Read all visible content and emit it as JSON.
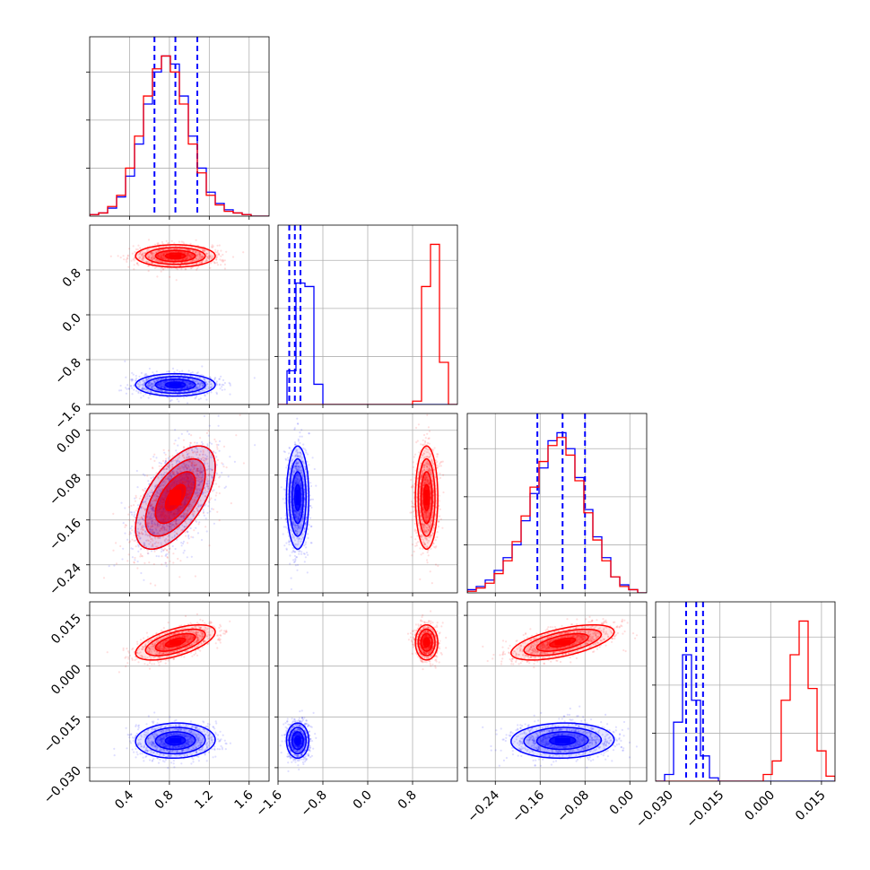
{
  "chart_data": {
    "type": "corner",
    "title": "",
    "grid": true,
    "colors": {
      "series_a": "#0000ff",
      "series_b": "#ff0000"
    },
    "parameters": [
      {
        "range": [
          0.0,
          1.8
        ],
        "ticks": [
          0.4,
          0.8,
          1.2,
          1.6
        ],
        "tick_labels": [
          "0.4",
          "0.8",
          "1.2",
          "1.6"
        ]
      },
      {
        "range": [
          -1.6,
          1.6
        ],
        "ticks": [
          -1.6,
          -0.8,
          0.0,
          0.8
        ],
        "tick_labels": [
          "−1.6",
          "−0.8",
          "0.0",
          "0.8"
        ]
      },
      {
        "range": [
          -0.29,
          0.03
        ],
        "ticks": [
          -0.24,
          -0.16,
          -0.08,
          0.0
        ],
        "tick_labels": [
          "−0.24",
          "−0.16",
          "−0.08",
          "0.00"
        ]
      },
      {
        "range": [
          -0.034,
          0.019
        ],
        "ticks": [
          -0.03,
          -0.015,
          0.0,
          0.015
        ],
        "tick_labels": [
          "−0.030",
          "−0.015",
          "0.000",
          "0.015"
        ]
      }
    ],
    "series": [
      {
        "color": "#0000ff",
        "means": [
          0.86,
          -1.25,
          -0.12,
          -0.022
        ],
        "stds": [
          0.2,
          0.1,
          0.046,
          0.0026
        ],
        "correlations": {
          "0-2": 0.6,
          "0-3": 0.05,
          "1-2": 0.0,
          "1-3": 0.0,
          "2-3": 0.05
        },
        "quantile_lines": [
          [
            0.65,
            0.86,
            1.08
          ],
          [
            -1.4,
            -1.3,
            -1.2
          ],
          [
            -0.165,
            -0.12,
            -0.08
          ],
          [
            -0.025,
            -0.022,
            -0.02
          ]
        ],
        "histograms": [
          {
            "edges": [
              0.0,
              0.09,
              0.18,
              0.27,
              0.36,
              0.45,
              0.54,
              0.63,
              0.72,
              0.81,
              0.9,
              0.99,
              1.08,
              1.17,
              1.26,
              1.35,
              1.44,
              1.53,
              1.62,
              1.71,
              1.8
            ],
            "counts": [
              0.01,
              0.02,
              0.05,
              0.12,
              0.25,
              0.45,
              0.7,
              0.9,
              1.0,
              0.95,
              0.75,
              0.5,
              0.3,
              0.15,
              0.08,
              0.04,
              0.02,
              0.01,
              0.0,
              0.0
            ]
          },
          {
            "edges": [
              -1.6,
              -1.44,
              -1.28,
              -1.12,
              -0.96,
              -0.8,
              -0.64,
              -0.48,
              -0.32,
              -0.16,
              0.0,
              0.16,
              0.32,
              0.48,
              0.64,
              0.8,
              0.96,
              1.12,
              1.28,
              1.44,
              1.6
            ],
            "counts": [
              0.0,
              0.2,
              0.72,
              0.7,
              0.12,
              0.0,
              0.0,
              0.0,
              0.0,
              0.0,
              0.0,
              0.0,
              0.0,
              0.0,
              0.0,
              0.0,
              0.0,
              0.0,
              0.0,
              0.0
            ]
          },
          {
            "edges": [
              -0.29,
              -0.274,
              -0.258,
              -0.242,
              -0.226,
              -0.21,
              -0.194,
              -0.178,
              -0.162,
              -0.146,
              -0.13,
              -0.114,
              -0.098,
              -0.082,
              -0.066,
              -0.05,
              -0.034,
              -0.018,
              -0.002,
              0.014,
              0.03
            ],
            "counts": [
              0.02,
              0.04,
              0.08,
              0.14,
              0.22,
              0.3,
              0.45,
              0.62,
              0.78,
              0.95,
              1.0,
              0.9,
              0.72,
              0.52,
              0.35,
              0.22,
              0.1,
              0.05,
              0.02,
              0.0
            ]
          },
          {
            "edges": [
              -0.034,
              -0.03135,
              -0.0287,
              -0.02605,
              -0.0234,
              -0.02075,
              -0.0181,
              -0.01545,
              -0.0128,
              -0.01015,
              -0.0075,
              -0.00485,
              -0.0022,
              0.00045,
              0.0031,
              0.00575,
              0.0084,
              0.01105,
              0.0137,
              0.01635,
              0.019
            ],
            "counts": [
              0.0,
              0.04,
              0.35,
              0.75,
              0.48,
              0.15,
              0.02,
              0.0,
              0.0,
              0.0,
              0.0,
              0.0,
              0.0,
              0.0,
              0.0,
              0.0,
              0.0,
              0.0,
              0.0,
              0.0
            ]
          }
        ]
      },
      {
        "color": "#ff0000",
        "means": [
          0.86,
          1.05,
          -0.12,
          0.007
        ],
        "stds": [
          0.2,
          0.1,
          0.046,
          0.0026
        ],
        "correlations": {
          "0-2": 0.6,
          "0-3": 0.6,
          "1-2": 0.0,
          "1-3": 0.0,
          "2-3": 0.6
        },
        "histograms": [
          {
            "edges": [
              0.0,
              0.09,
              0.18,
              0.27,
              0.36,
              0.45,
              0.54,
              0.63,
              0.72,
              0.81,
              0.9,
              0.99,
              1.08,
              1.17,
              1.26,
              1.35,
              1.44,
              1.53,
              1.62,
              1.71,
              1.8
            ],
            "counts": [
              0.01,
              0.02,
              0.06,
              0.13,
              0.3,
              0.5,
              0.75,
              0.92,
              1.0,
              0.9,
              0.7,
              0.45,
              0.27,
              0.13,
              0.07,
              0.03,
              0.02,
              0.01,
              0.0,
              0.0
            ]
          },
          {
            "edges": [
              -1.6,
              -1.44,
              -1.28,
              -1.12,
              -0.96,
              -0.8,
              -0.64,
              -0.48,
              -0.32,
              -0.16,
              0.0,
              0.16,
              0.32,
              0.48,
              0.64,
              0.8,
              0.96,
              1.12,
              1.28,
              1.44,
              1.6
            ],
            "counts": [
              0.0,
              0.0,
              0.0,
              0.0,
              0.0,
              0.0,
              0.0,
              0.0,
              0.0,
              0.0,
              0.0,
              0.0,
              0.0,
              0.0,
              0.0,
              0.02,
              0.7,
              0.95,
              0.25,
              0.0
            ]
          },
          {
            "edges": [
              -0.29,
              -0.274,
              -0.258,
              -0.242,
              -0.226,
              -0.21,
              -0.194,
              -0.178,
              -0.162,
              -0.146,
              -0.13,
              -0.114,
              -0.098,
              -0.082,
              -0.066,
              -0.05,
              -0.034,
              -0.018,
              -0.002,
              0.014,
              0.03
            ],
            "counts": [
              0.01,
              0.03,
              0.06,
              0.12,
              0.2,
              0.32,
              0.48,
              0.66,
              0.82,
              0.92,
              0.97,
              0.86,
              0.7,
              0.5,
              0.33,
              0.2,
              0.1,
              0.04,
              0.02,
              0.0
            ]
          },
          {
            "edges": [
              -0.034,
              -0.03135,
              -0.0287,
              -0.02605,
              -0.0234,
              -0.02075,
              -0.0181,
              -0.01545,
              -0.0128,
              -0.01015,
              -0.0075,
              -0.00485,
              -0.0022,
              0.00045,
              0.0031,
              0.00575,
              0.0084,
              0.01105,
              0.0137,
              0.01635,
              0.019
            ],
            "counts": [
              0.0,
              0.0,
              0.0,
              0.0,
              0.0,
              0.0,
              0.0,
              0.0,
              0.0,
              0.0,
              0.0,
              0.0,
              0.04,
              0.12,
              0.48,
              0.75,
              0.95,
              0.55,
              0.18,
              0.03
            ]
          }
        ]
      }
    ]
  }
}
